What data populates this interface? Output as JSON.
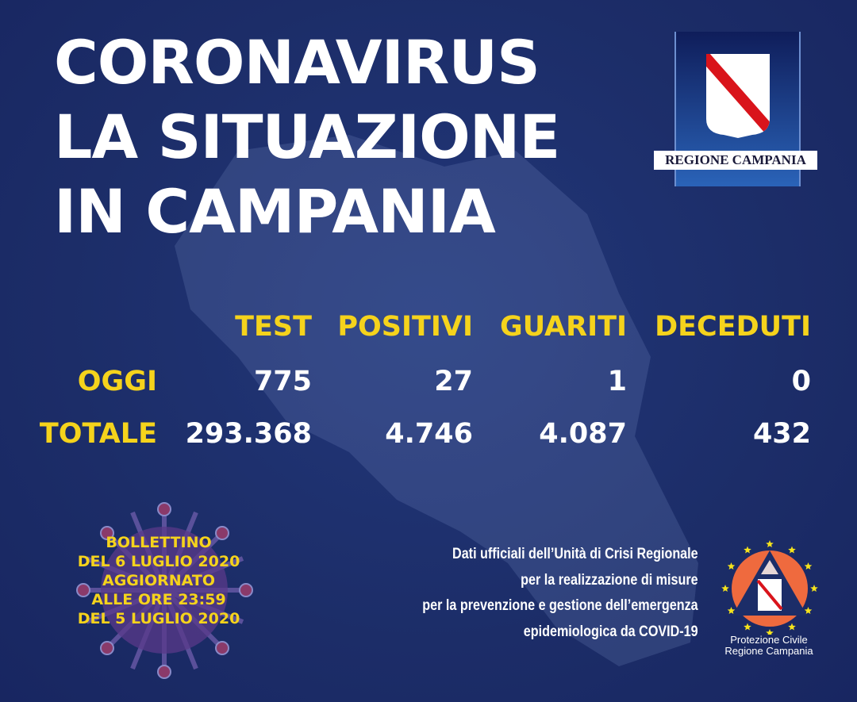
{
  "title": {
    "line1": "CORONAVIRUS",
    "line2": "LA SITUAZIONE",
    "line3": "IN CAMPANIA"
  },
  "logo": {
    "text": "REGIONE CAMPANIA",
    "colors": {
      "stripe": "#d9141b",
      "shield": "#ffffff"
    }
  },
  "table": {
    "headers": [
      "TEST",
      "POSITIVI",
      "GUARITI",
      "DECEDUTI"
    ],
    "rows": [
      {
        "label": "OGGI",
        "values": [
          "775",
          "27",
          "1",
          "0"
        ]
      },
      {
        "label": "TOTALE",
        "values": [
          "293.368",
          "4.746",
          "4.087",
          "432"
        ]
      }
    ]
  },
  "bulletin": {
    "lines": [
      "BOLLETTINO",
      "DEL 6 LUGLIO 2020",
      "AGGIORNATO",
      "ALLE ORE 23:59",
      "DEL 5 LUGLIO 2020"
    ]
  },
  "source": {
    "lines": [
      "Dati ufficiali dell’Unità di Crisi Regionale",
      "per la realizzazione di misure",
      "per la prevenzione e gestione dell’emergenza",
      "epidemiologica da COVID-19"
    ]
  },
  "protezione_civile": {
    "line1": "Protezione Civile",
    "line2": "Regione Campania",
    "colors": {
      "circle": "#ef6a3e",
      "stars": "#f5e31c"
    }
  },
  "colors": {
    "background": "#1c2d68",
    "accent": "#f5d31c",
    "text": "#ffffff"
  }
}
